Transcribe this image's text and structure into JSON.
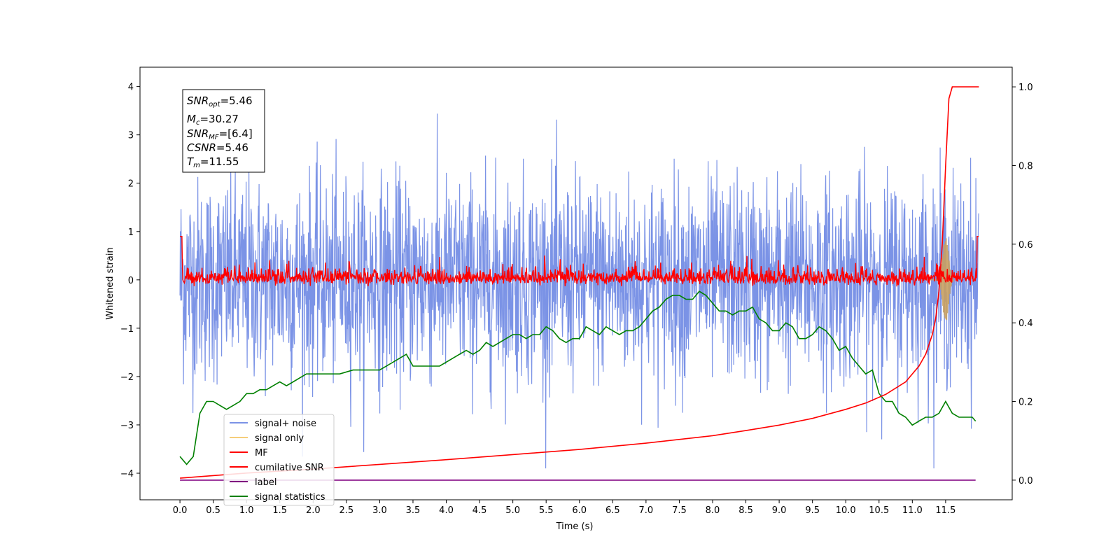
{
  "chart_data": {
    "type": "line",
    "title": "",
    "xlabel": "Time (s)",
    "ylabel": "Whitened strain",
    "xlim": [
      -0.6,
      12.5
    ],
    "ylim": [
      -4.55,
      4.4
    ],
    "y2lim": [
      -0.05,
      1.05
    ],
    "xticks": [
      "0.0",
      "0.5",
      "1.0",
      "1.5",
      "2.0",
      "2.5",
      "3.0",
      "3.5",
      "4.0",
      "4.5",
      "5.0",
      "5.5",
      "6.0",
      "6.5",
      "7.0",
      "7.5",
      "8.0",
      "8.5",
      "9.0",
      "9.5",
      "10.0",
      "10.5",
      "11.0",
      "11.5"
    ],
    "yticks": [
      "4",
      "3",
      "2",
      "1",
      "0",
      "−1",
      "−2",
      "−3",
      "−4"
    ],
    "y2ticks": [
      "1.0",
      "0.8",
      "0.6",
      "0.4",
      "0.2",
      "0.0"
    ],
    "grid": false,
    "legend_position": "lower-left",
    "legend": [
      {
        "name": "signal+ noise",
        "color": "#7b93e6"
      },
      {
        "name": "signal only",
        "color": "#f5cd7a"
      },
      {
        "name": "MF",
        "color": "#ff0000"
      },
      {
        "name": "cumilative SNR",
        "color": "#ff0000"
      },
      {
        "name": "label",
        "color": "#800080"
      },
      {
        "name": "signal statistics",
        "color": "#008000"
      }
    ],
    "annotation": {
      "snr_opt": {
        "sym": "SNR",
        "sub": "opt",
        "val": "=5.46"
      },
      "mc": {
        "sym": "M",
        "sub": "c",
        "val": "=30.27"
      },
      "snr_mf": {
        "sym": "SNR",
        "sub": "MF",
        "val": "=[6.4]"
      },
      "csnr": {
        "sym": "CSNR",
        "sub": "",
        "val": "=5.46"
      },
      "tm": {
        "sym": "T",
        "sub": "m",
        "val": "=11.55"
      }
    },
    "series": [
      {
        "name": "signal statistics",
        "axis": "y2",
        "x": [
          0.0,
          0.1,
          0.2,
          0.3,
          0.4,
          0.5,
          0.6,
          0.7,
          0.8,
          0.9,
          1.0,
          1.1,
          1.2,
          1.3,
          1.4,
          1.5,
          1.6,
          1.7,
          1.8,
          1.9,
          2.0,
          2.2,
          2.4,
          2.6,
          2.8,
          3.0,
          3.2,
          3.4,
          3.5,
          3.7,
          3.9,
          4.1,
          4.2,
          4.3,
          4.4,
          4.5,
          4.6,
          4.7,
          4.8,
          4.9,
          5.0,
          5.1,
          5.2,
          5.3,
          5.4,
          5.5,
          5.6,
          5.7,
          5.8,
          5.9,
          6.0,
          6.1,
          6.2,
          6.3,
          6.4,
          6.5,
          6.6,
          6.7,
          6.8,
          6.9,
          7.0,
          7.1,
          7.2,
          7.3,
          7.4,
          7.5,
          7.6,
          7.7,
          7.8,
          7.9,
          8.0,
          8.1,
          8.2,
          8.3,
          8.4,
          8.5,
          8.6,
          8.7,
          8.8,
          8.9,
          9.0,
          9.1,
          9.2,
          9.3,
          9.4,
          9.5,
          9.6,
          9.7,
          9.8,
          9.9,
          10.0,
          10.1,
          10.2,
          10.3,
          10.4,
          10.5,
          10.6,
          10.7,
          10.8,
          10.9,
          11.0,
          11.1,
          11.2,
          11.3,
          11.4,
          11.5,
          11.6,
          11.7,
          11.8,
          11.9,
          11.95
        ],
        "y": [
          0.06,
          0.04,
          0.06,
          0.17,
          0.2,
          0.2,
          0.19,
          0.18,
          0.19,
          0.2,
          0.22,
          0.22,
          0.23,
          0.23,
          0.24,
          0.25,
          0.24,
          0.25,
          0.26,
          0.27,
          0.27,
          0.27,
          0.27,
          0.28,
          0.28,
          0.28,
          0.3,
          0.32,
          0.29,
          0.29,
          0.29,
          0.31,
          0.32,
          0.33,
          0.32,
          0.33,
          0.35,
          0.34,
          0.35,
          0.36,
          0.37,
          0.37,
          0.36,
          0.37,
          0.37,
          0.39,
          0.38,
          0.36,
          0.35,
          0.36,
          0.36,
          0.39,
          0.38,
          0.37,
          0.39,
          0.38,
          0.37,
          0.38,
          0.38,
          0.39,
          0.41,
          0.43,
          0.44,
          0.46,
          0.47,
          0.47,
          0.46,
          0.46,
          0.48,
          0.47,
          0.45,
          0.43,
          0.43,
          0.42,
          0.43,
          0.43,
          0.44,
          0.41,
          0.4,
          0.38,
          0.38,
          0.4,
          0.39,
          0.36,
          0.36,
          0.37,
          0.39,
          0.38,
          0.36,
          0.33,
          0.34,
          0.31,
          0.29,
          0.27,
          0.28,
          0.22,
          0.2,
          0.2,
          0.17,
          0.16,
          0.14,
          0.15,
          0.16,
          0.16,
          0.17,
          0.2,
          0.17,
          0.16,
          0.16,
          0.16,
          0.15
        ]
      },
      {
        "name": "cumilative SNR",
        "axis": "y2",
        "x": [
          0.0,
          1.0,
          2.0,
          3.0,
          4.0,
          5.0,
          6.0,
          7.0,
          8.0,
          8.5,
          9.0,
          9.5,
          10.0,
          10.3,
          10.6,
          10.9,
          11.1,
          11.2,
          11.3,
          11.35,
          11.4,
          11.45,
          11.5,
          11.55,
          11.6,
          11.7,
          12.0
        ],
        "y": [
          0.005,
          0.018,
          0.028,
          0.04,
          0.052,
          0.065,
          0.078,
          0.094,
          0.113,
          0.126,
          0.14,
          0.157,
          0.18,
          0.196,
          0.218,
          0.25,
          0.29,
          0.32,
          0.37,
          0.41,
          0.48,
          0.6,
          0.8,
          0.97,
          1.0,
          1.0,
          1.0
        ]
      },
      {
        "name": "label",
        "axis": "y2",
        "x": [
          0.0,
          11.95
        ],
        "y": [
          0.0,
          0.0
        ]
      }
    ]
  }
}
